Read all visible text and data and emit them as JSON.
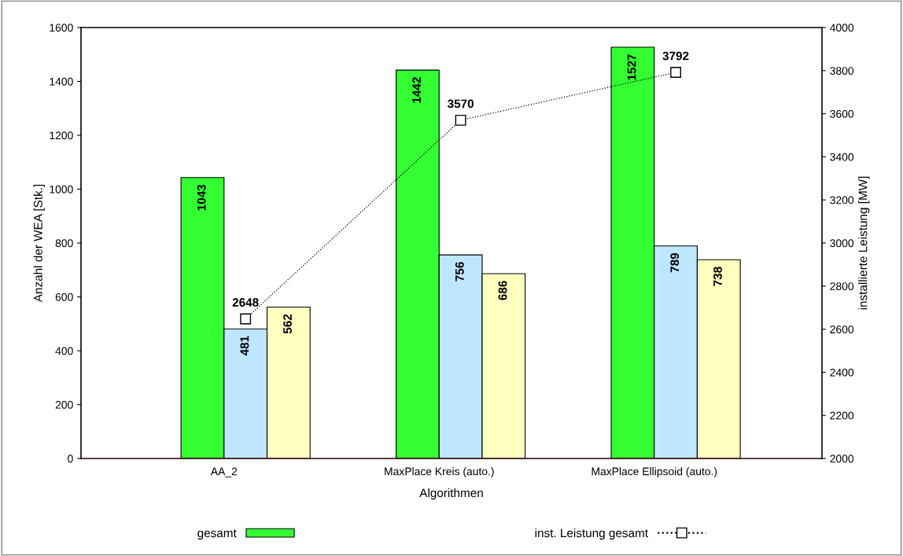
{
  "chart_data": {
    "type": "bar",
    "xlabel": "Algorithmen",
    "ylabel": "Anzahl der WEA [Stk.]",
    "y2label": "installierte Leistung [MW]",
    "categories": [
      "AA_2",
      "MaxPlace Kreis (auto.)",
      "MaxPlace Ellipsoid (auto.)"
    ],
    "series": [
      {
        "name": "gesamt",
        "color": "#33ff33",
        "values": [
          1043,
          1442,
          1527
        ]
      },
      {
        "color": "#bfe6ff",
        "values": [
          481,
          756,
          789
        ]
      },
      {
        "color": "#ffffc0",
        "values": [
          562,
          686,
          738
        ]
      },
      {
        "name": "inst. Leistung gesamt",
        "type": "line",
        "axis": "y2",
        "color": "#000000",
        "values": [
          2648,
          3570,
          3792
        ],
        "marker": "square",
        "line_style": "dotted"
      }
    ],
    "ylim": [
      0,
      1600
    ],
    "yticks": [
      0,
      200,
      400,
      600,
      800,
      1000,
      1200,
      1400,
      1600
    ],
    "y2lim": [
      2000,
      4000
    ],
    "y2ticks": [
      2000,
      2200,
      2400,
      2600,
      2800,
      3000,
      3200,
      3400,
      3600,
      3800,
      4000
    ],
    "data_labels": true,
    "legend": "bottom",
    "grid": false
  }
}
